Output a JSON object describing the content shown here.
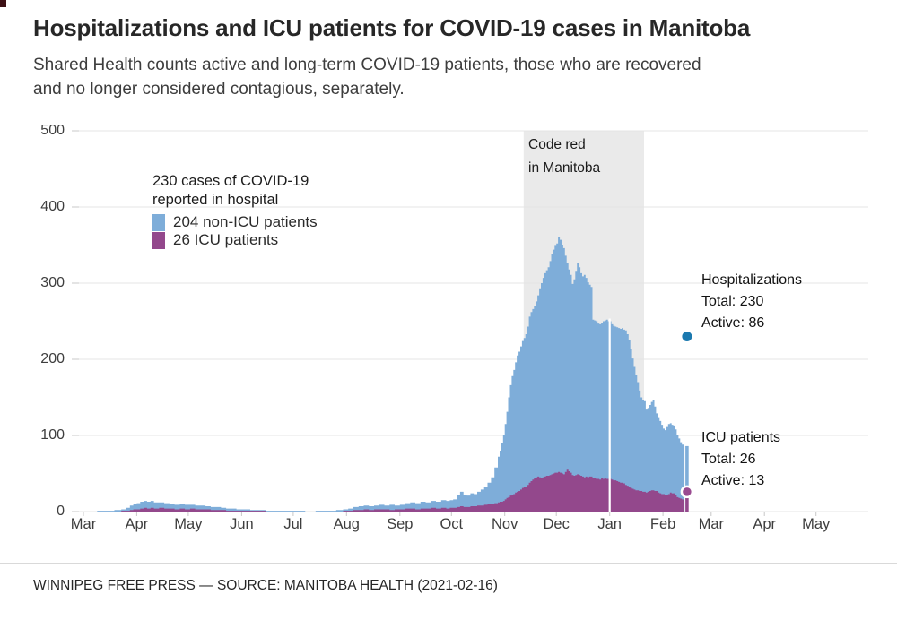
{
  "header": {
    "title": "Hospitalizations and ICU patients for COVID-19 cases in Manitoba",
    "subtitle_line1": "Shared Health counts active and long-term COVID-19 patients, those who are recovered",
    "subtitle_line2": "and no longer considered contagious, separately."
  },
  "legend": {
    "title_line1": "230 cases of COVID-19",
    "title_line2": "reported in hospital",
    "items": [
      {
        "label": "204 non-ICU patients",
        "color": "#7eadd9"
      },
      {
        "label": "26 ICU patients",
        "color": "#93488c"
      }
    ]
  },
  "band_label": {
    "line1": "Code red",
    "line2": "in Manitoba"
  },
  "annotations": {
    "hospitalizations": {
      "title": "Hospitalizations",
      "total": "Total: 230",
      "active": "Active: 86"
    },
    "icu": {
      "title": "ICU patients",
      "total": "Total: 26",
      "active": "Active: 13"
    }
  },
  "footer": {
    "credit": "WINNIPEG FREE PRESS — SOURCE: MANITOBA HEALTH (2021-02-16)"
  },
  "chart_data": {
    "type": "area",
    "title": "Hospitalizations and ICU patients for COVID-19 cases in Manitoba",
    "note": "x axis spans Mar 2020 - May 2021; day 0 = Mar 1 2020; series are daily patient counts in hospital",
    "x_axis": {
      "tick_labels": [
        "Mar",
        "Apr",
        "May",
        "Jun",
        "Jul",
        "Aug",
        "Sep",
        "Oct",
        "Nov",
        "Dec",
        "Jan",
        "Feb",
        "Mar",
        "Apr",
        "May"
      ],
      "tick_days": [
        0,
        31,
        61,
        92,
        122,
        153,
        184,
        214,
        245,
        275,
        306,
        337,
        365,
        396,
        426
      ]
    },
    "y_axis": {
      "ticks": [
        0,
        100,
        200,
        300,
        400,
        500
      ],
      "range": [
        0,
        500
      ],
      "grid": true
    },
    "colors": {
      "hospital_area": "#7eadd9",
      "icu_area": "#93488c",
      "hospital_dot": "#1b79af",
      "icu_dot": "#9a4b91",
      "code_red_band": "#eaeaea"
    },
    "code_red_band": {
      "from_day": 256,
      "to_day": 326,
      "label": "Code red in Manitoba"
    },
    "data_gap_day": 306,
    "series_end_day": 349.5,
    "days": [
      0,
      8,
      14,
      18,
      22,
      25,
      27,
      29,
      31,
      33,
      35,
      37,
      39,
      41,
      44,
      47,
      50,
      53,
      56,
      59,
      62,
      65,
      68,
      71,
      74,
      77,
      80,
      83,
      86,
      89,
      93,
      97,
      101,
      106,
      111,
      117,
      123,
      129,
      135,
      141,
      147,
      151,
      154,
      157,
      160,
      163,
      166,
      169,
      172,
      175,
      178,
      181,
      184,
      187,
      190,
      193,
      196,
      199,
      202,
      205,
      208,
      211,
      213,
      215,
      217,
      219,
      221,
      223,
      225,
      227,
      229,
      231,
      233,
      235,
      237,
      239,
      241,
      242,
      243,
      244,
      245,
      246,
      247,
      248,
      249,
      250,
      251,
      252,
      253,
      254,
      255,
      256,
      257,
      258,
      259,
      260,
      261,
      262,
      263,
      264,
      265,
      266,
      267,
      268,
      269,
      270,
      271,
      272,
      273,
      274,
      275,
      276,
      277,
      278,
      279,
      280,
      281,
      282,
      283,
      284,
      285,
      286,
      287,
      288,
      289,
      290,
      291,
      292,
      293,
      294,
      295,
      296,
      297,
      298,
      299,
      300,
      301,
      302,
      303,
      304,
      305,
      307,
      308,
      309,
      310,
      311,
      312,
      313,
      314,
      315,
      316,
      317,
      318,
      319,
      320,
      321,
      322,
      323,
      324,
      325,
      326,
      327,
      328,
      329,
      330,
      331,
      332,
      333,
      334,
      335,
      336,
      337,
      338,
      339,
      340,
      341,
      342,
      343,
      344,
      345,
      346,
      347,
      348,
      349
    ],
    "series": [
      {
        "name": "Hospitalizations (non-ICU + ICU in hospital)",
        "values": [
          0,
          1,
          1,
          2,
          3,
          5,
          8,
          10,
          11,
          13,
          14,
          13,
          14,
          12,
          12,
          11,
          10,
          9,
          10,
          9,
          9,
          8,
          8,
          7,
          6,
          6,
          5,
          4,
          4,
          3,
          3,
          2,
          2,
          1,
          1,
          1,
          1,
          0,
          1,
          1,
          2,
          3,
          4,
          6,
          7,
          8,
          7,
          8,
          9,
          8,
          9,
          8,
          9,
          11,
          12,
          11,
          13,
          12,
          14,
          13,
          15,
          14,
          15,
          16,
          22,
          26,
          22,
          21,
          24,
          23,
          26,
          29,
          32,
          38,
          45,
          58,
          72,
          80,
          90,
          101,
          115,
          131,
          150,
          166,
          178,
          186,
          196,
          205,
          210,
          217,
          224,
          228,
          233,
          243,
          256,
          262,
          266,
          270,
          276,
          284,
          292,
          300,
          307,
          313,
          317,
          321,
          329,
          338,
          344,
          349,
          352,
          360,
          357,
          350,
          346,
          336,
          327,
          318,
          311,
          299,
          305,
          315,
          327,
          321,
          313,
          309,
          311,
          307,
          301,
          298,
          295,
          252,
          251,
          250,
          247,
          246,
          248,
          250,
          251,
          252,
          250,
          246,
          244,
          243,
          242,
          241,
          240,
          241,
          239,
          238,
          233,
          225,
          214,
          201,
          190,
          180,
          170,
          159,
          150,
          147,
          145,
          134,
          136,
          140,
          144,
          146,
          138,
          129,
          124,
          119,
          114,
          109,
          107,
          111,
          115,
          116,
          114,
          113,
          108,
          101,
          96,
          91,
          88,
          86
        ]
      },
      {
        "name": "ICU patients",
        "values": [
          0,
          0,
          0,
          0,
          1,
          1,
          2,
          3,
          3,
          4,
          5,
          4,
          5,
          4,
          5,
          4,
          4,
          3,
          4,
          3,
          4,
          3,
          3,
          3,
          2,
          2,
          2,
          1,
          1,
          1,
          1,
          1,
          1,
          0,
          0,
          0,
          0,
          0,
          0,
          0,
          0,
          1,
          1,
          2,
          2,
          3,
          2,
          3,
          3,
          3,
          2,
          3,
          3,
          4,
          4,
          3,
          4,
          4,
          5,
          4,
          5,
          4,
          5,
          5,
          6,
          7,
          6,
          6,
          7,
          7,
          8,
          8,
          9,
          10,
          10,
          11,
          12,
          13,
          13,
          14,
          16,
          18,
          19,
          21,
          22,
          23,
          25,
          26,
          27,
          29,
          31,
          32,
          33,
          35,
          38,
          40,
          42,
          44,
          45,
          46,
          45,
          44,
          45,
          46,
          47,
          47,
          48,
          49,
          50,
          51,
          51,
          52,
          51,
          50,
          49,
          52,
          55,
          53,
          51,
          48,
          47,
          48,
          49,
          48,
          47,
          46,
          45,
          46,
          45,
          46,
          46,
          44,
          44,
          43,
          43,
          42,
          44,
          43,
          44,
          43,
          43,
          42,
          41,
          41,
          40,
          39,
          38,
          38,
          37,
          35,
          34,
          33,
          31,
          30,
          29,
          28,
          28,
          27,
          27,
          26,
          26,
          25,
          26,
          27,
          28,
          28,
          27,
          27,
          25,
          24,
          23,
          23,
          22,
          22,
          23,
          25,
          24,
          24,
          22,
          19,
          18,
          17,
          16,
          15
        ]
      }
    ],
    "latest_markers": {
      "day": 351,
      "hospital_total": 230,
      "hospital_active": 86,
      "icu_total": 26,
      "icu_active": 13
    }
  }
}
